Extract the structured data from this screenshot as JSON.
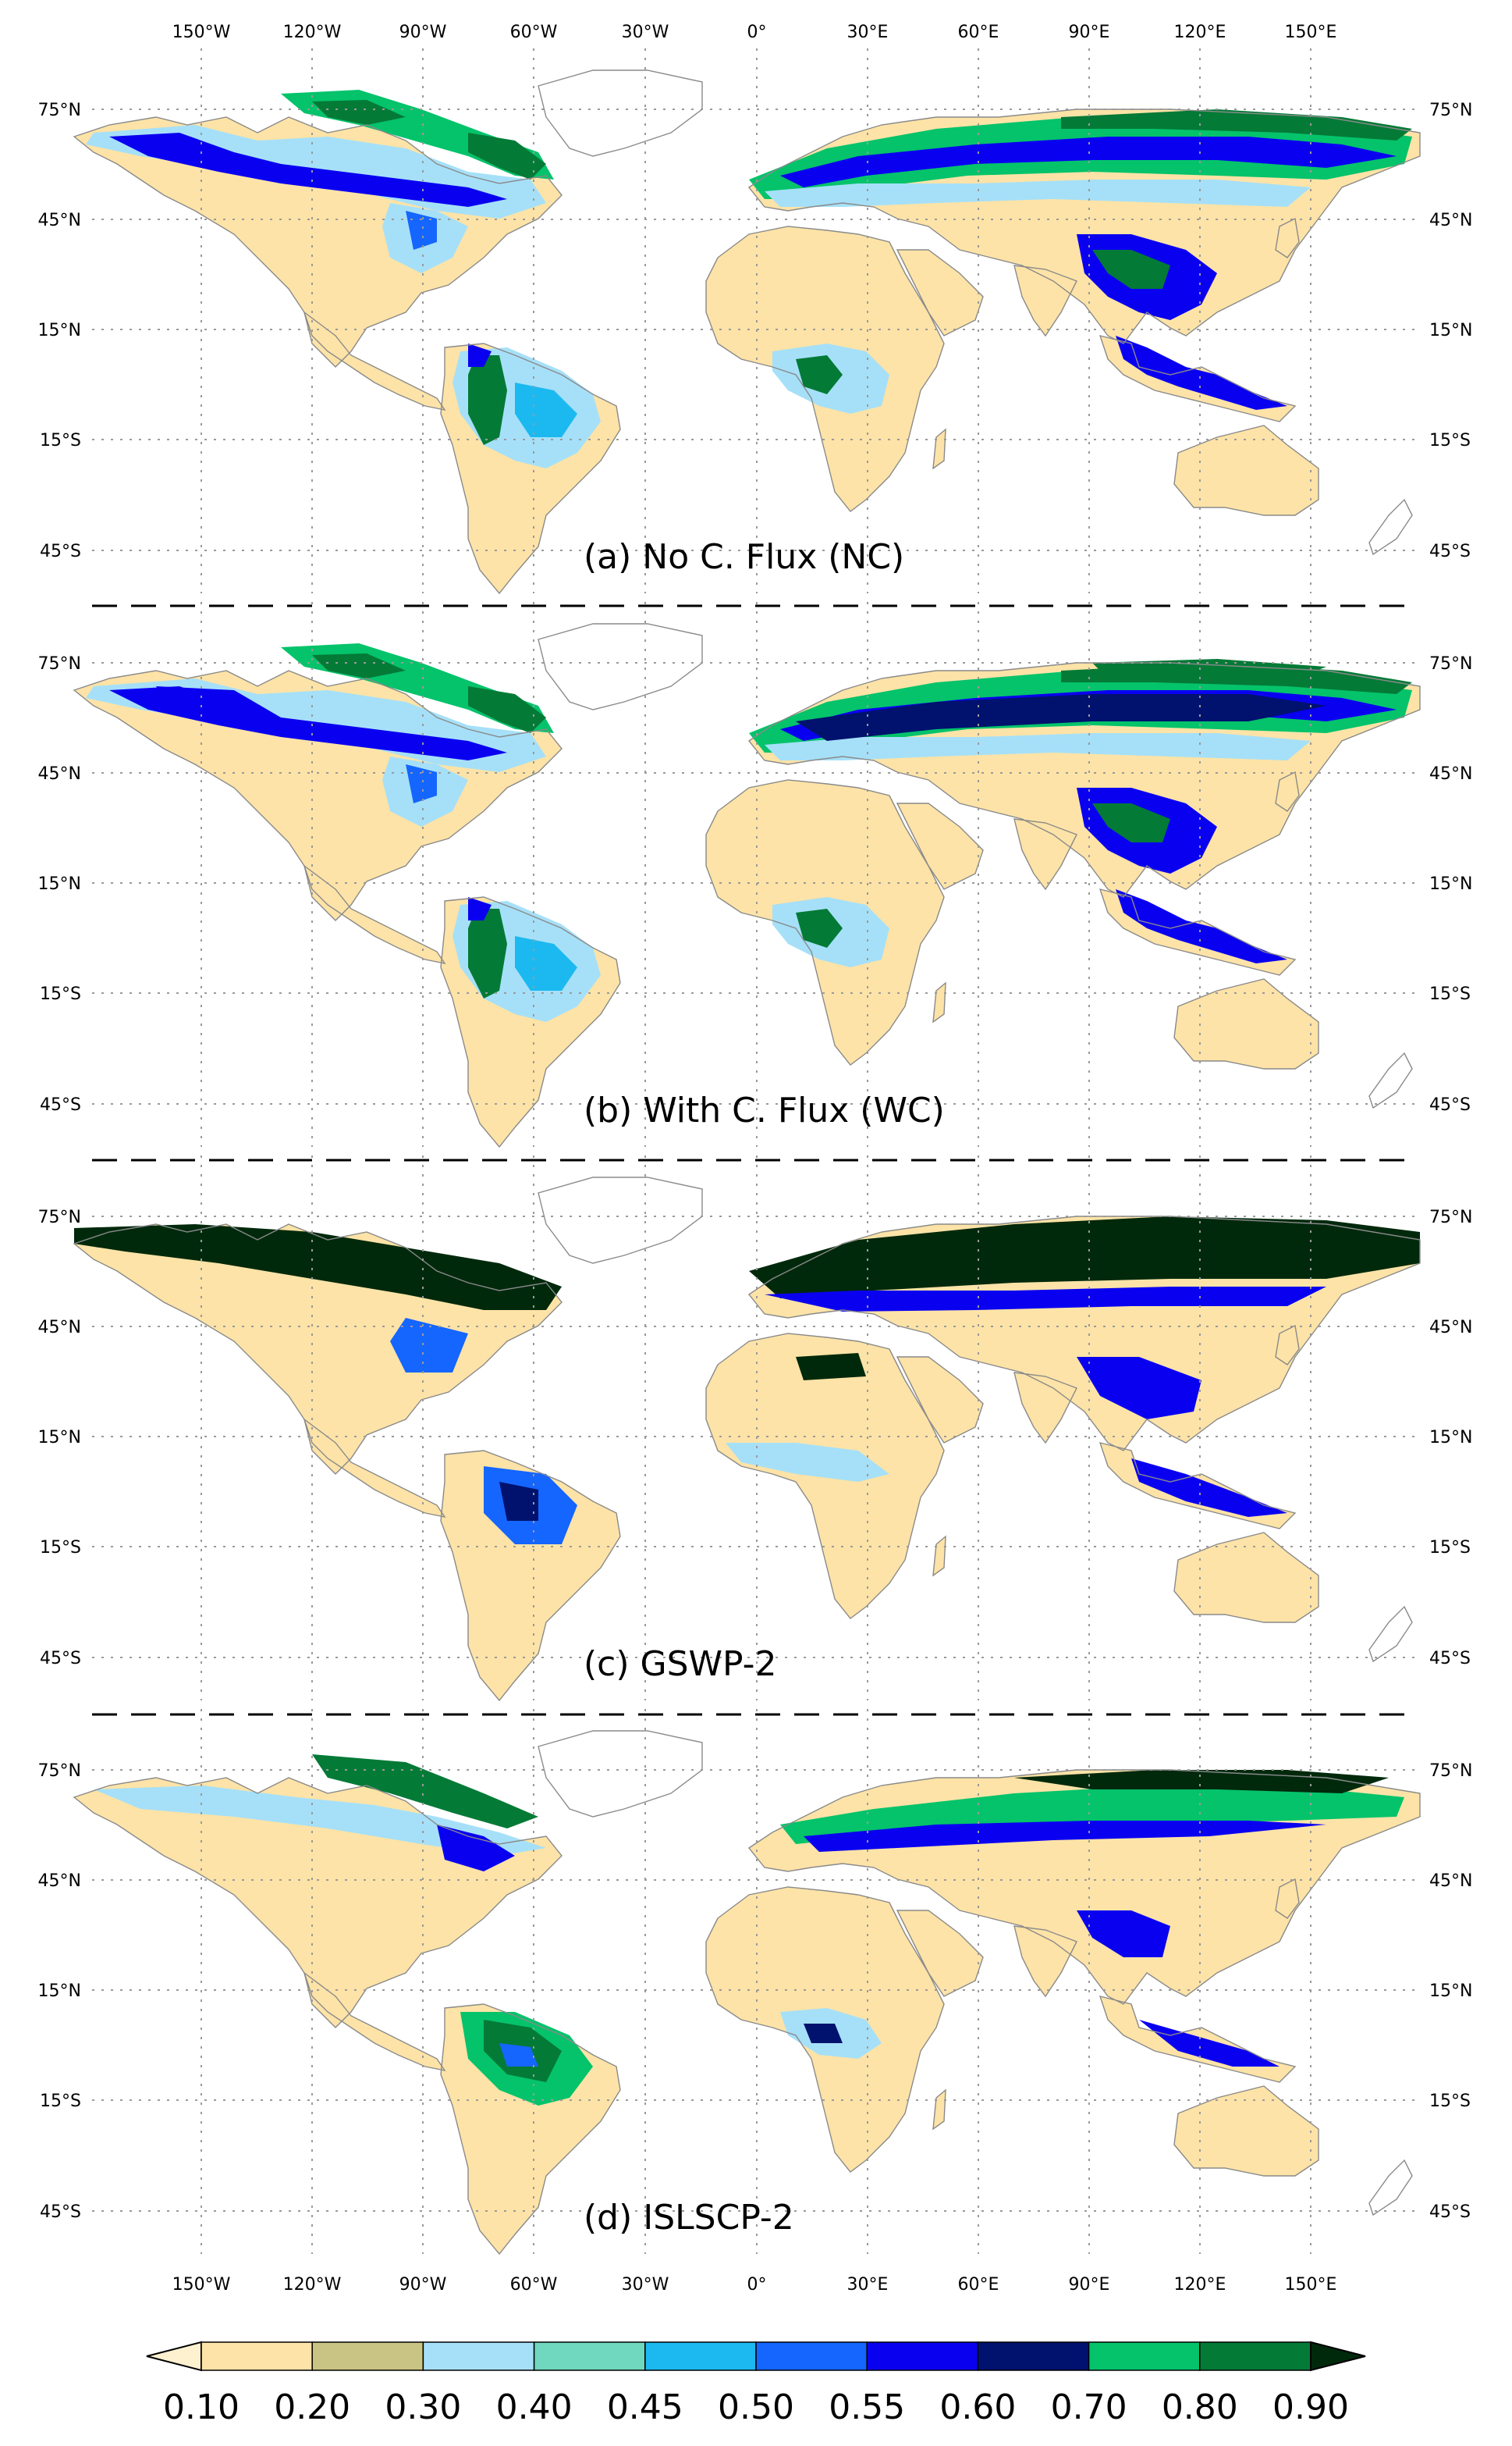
{
  "figure": {
    "lon_labels": [
      "150°W",
      "120°W",
      "90°W",
      "60°W",
      "30°W",
      "0°",
      "30°E",
      "60°E",
      "90°E",
      "120°E",
      "150°E"
    ],
    "lat_labels": [
      "75°N",
      "45°N",
      "15°N",
      "15°S",
      "45°S"
    ],
    "panels": [
      {
        "title": "(a) No C. Flux (NC)"
      },
      {
        "title": "(b) With C. Flux (WC)"
      },
      {
        "title": "(c) GSWP-2"
      },
      {
        "title": "(d) ISLSCP-2"
      }
    ],
    "colorbar": {
      "labels": [
        "0.10",
        "0.20",
        "0.30",
        "0.40",
        "0.45",
        "0.50",
        "0.55",
        "0.60",
        "0.70",
        "0.80",
        "0.90"
      ],
      "colors": [
        "#fde3a7",
        "#c9c483",
        "#a6e0f8",
        "#6fd8bf",
        "#1cb9f0",
        "#1565ff",
        "#0a00f0",
        "#00126e",
        "#04c36b",
        "#047a37"
      ],
      "under_color": "#fdf1d0",
      "over_color": "#00290c"
    }
  }
}
